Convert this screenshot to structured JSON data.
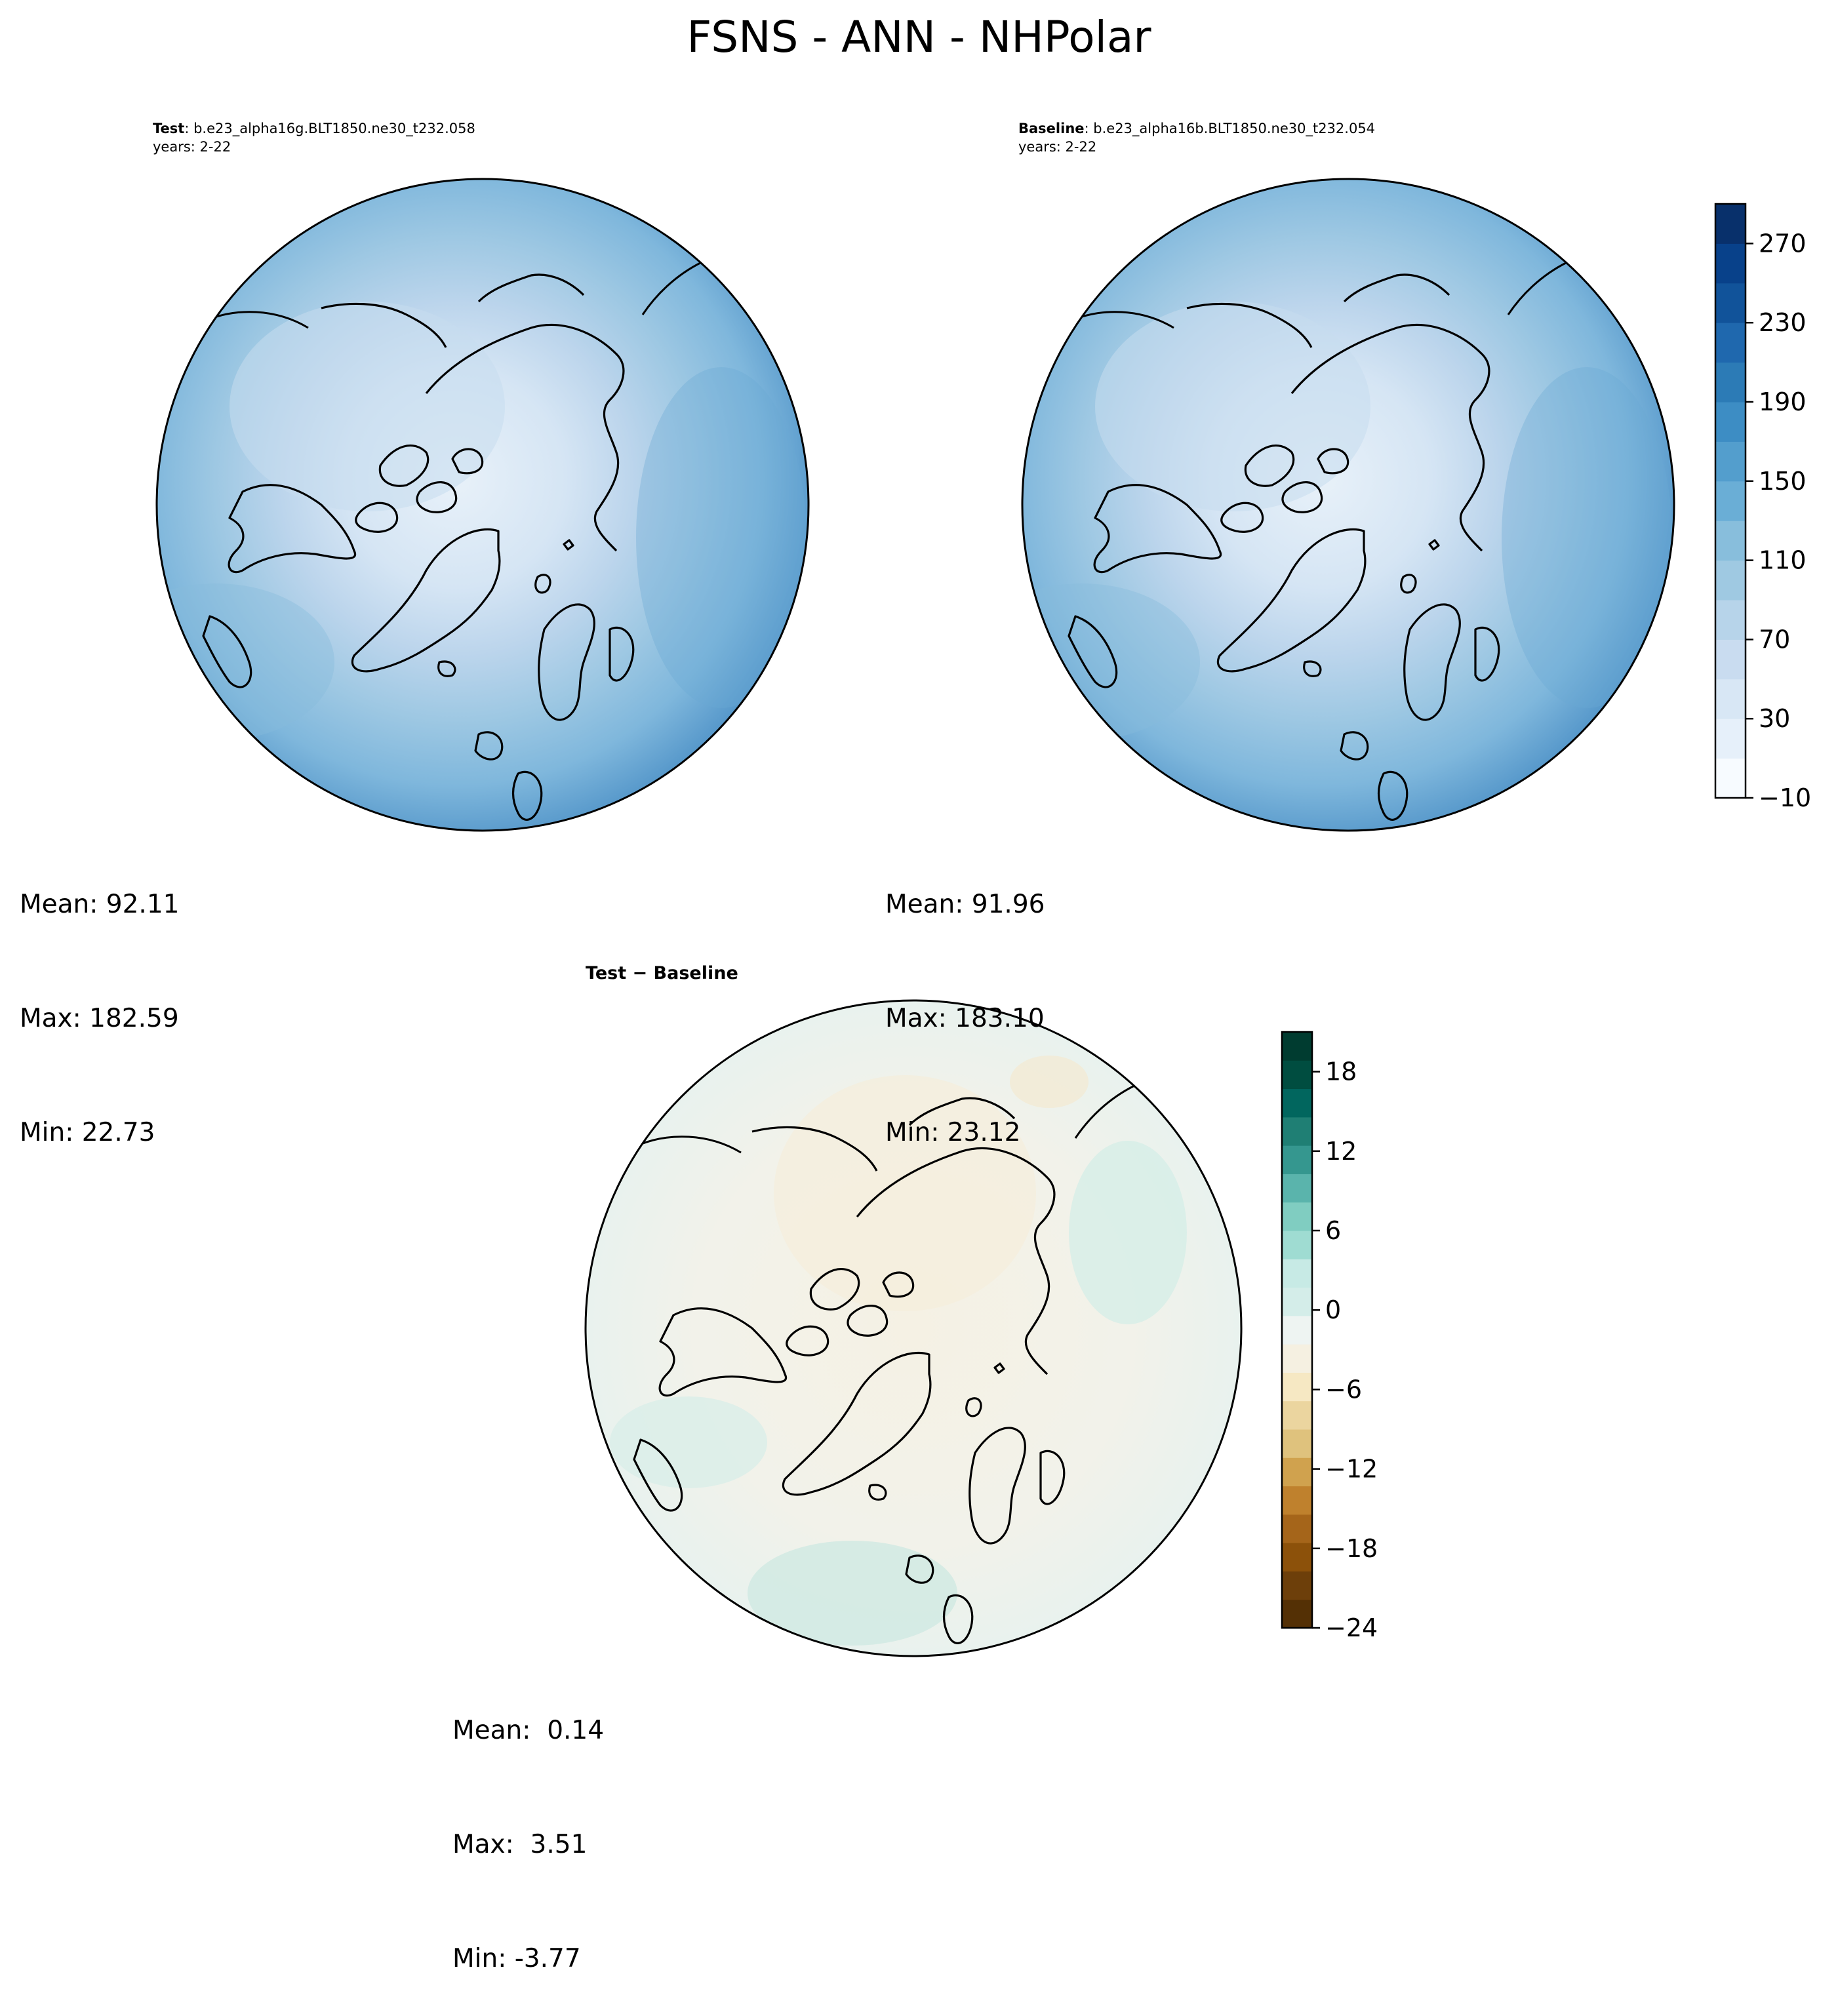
{
  "figure_title": "FSNS - ANN - NHPolar",
  "panels": {
    "test": {
      "label": "Test",
      "case": ": b.e23_alpha16g.BLT1850.ne30_t232.058",
      "years": "years: 2-22",
      "mean": "Mean: 92.11",
      "max": "Max: 182.59",
      "min": "Min: 22.73"
    },
    "baseline": {
      "label": "Baseline",
      "case": ": b.e23_alpha16b.BLT1850.ne30_t232.054",
      "years": "years: 2-22",
      "mean": "Mean: 91.96",
      "max": "Max: 183.10",
      "min": "Min: 23.12"
    },
    "diff": {
      "label": "Test − Baseline",
      "mean": "Mean:  0.14",
      "max": "Max:  3.51",
      "min": "Min: -3.77"
    }
  },
  "colorbars": {
    "main": {
      "ticks": [
        "270",
        "230",
        "190",
        "150",
        "110",
        "70",
        "30",
        "−10"
      ],
      "tick_values": [
        270,
        230,
        190,
        150,
        110,
        70,
        30,
        -10
      ],
      "range": [
        -10,
        290
      ],
      "colors": [
        "#f7fbff",
        "#e6f0fa",
        "#d8e7f5",
        "#c9dcf0",
        "#b7d4ea",
        "#9fc9e2",
        "#88bedc",
        "#6aaed6",
        "#539ecd",
        "#3d8dc4",
        "#2c7bb6",
        "#1f68ae",
        "#11539a",
        "#08418a",
        "#08306b"
      ]
    },
    "diff": {
      "ticks": [
        "18",
        "12",
        "6",
        "0",
        "−6",
        "−12",
        "−18",
        "−24"
      ],
      "tick_values": [
        18,
        12,
        6,
        0,
        -6,
        -12,
        -18,
        -24
      ],
      "range": [
        -24,
        21
      ],
      "colors": [
        "#543005",
        "#6d3f0a",
        "#8c510a",
        "#a5651a",
        "#bf812d",
        "#d0a24e",
        "#dfc27d",
        "#ebd59f",
        "#f6e8c3",
        "#f5f0e1",
        "#eef4f2",
        "#d4ede9",
        "#c7eae5",
        "#9fdcd2",
        "#80cdc1",
        "#5ab4ac",
        "#35978f",
        "#1f7f74",
        "#01665e",
        "#004d40",
        "#003c30"
      ]
    }
  },
  "map_colors": {
    "field_outer": "#5aa0cf",
    "field_mid": "#8cbedd",
    "field_inner": "#c3d9ee",
    "field_pole": "#e4eef8",
    "diff_base": "#eef4f2",
    "diff_warm": "#f5efdf",
    "diff_cool": "#d6ede7",
    "coast": "#000000"
  }
}
